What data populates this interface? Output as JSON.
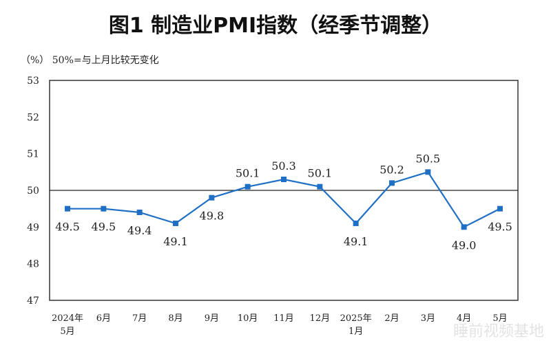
{
  "chart_data": {
    "type": "line",
    "title": "图1  制造业PMI指数（经季节调整）",
    "ylabel": "（%）",
    "annotation": "50%=与上月比较无变化",
    "categories": [
      [
        "2024年",
        "5月"
      ],
      [
        "6月"
      ],
      [
        "7月"
      ],
      [
        "8月"
      ],
      [
        "9月"
      ],
      [
        "10月"
      ],
      [
        "11月"
      ],
      [
        "12月"
      ],
      [
        "2025年",
        "1月"
      ],
      [
        "2月"
      ],
      [
        "3月"
      ],
      [
        "4月"
      ],
      [
        "5月"
      ]
    ],
    "values": [
      49.5,
      49.5,
      49.4,
      49.1,
      49.8,
      50.1,
      50.3,
      50.1,
      49.1,
      50.2,
      50.5,
      49.0,
      49.5
    ],
    "data_labels": [
      "49.5",
      "49.5",
      "49.4",
      "49.1",
      "49.8",
      "50.1",
      "50.3",
      "50.1",
      "49.1",
      "50.2",
      "50.5",
      "49.0",
      "49.5"
    ],
    "ylim": [
      47,
      53
    ],
    "yticks": [
      "47",
      "48",
      "49",
      "50",
      "51",
      "52",
      "53"
    ],
    "reference_line": 50,
    "grid": false,
    "series_color": "#1f6fc5"
  },
  "watermark": "睡前视频基地"
}
